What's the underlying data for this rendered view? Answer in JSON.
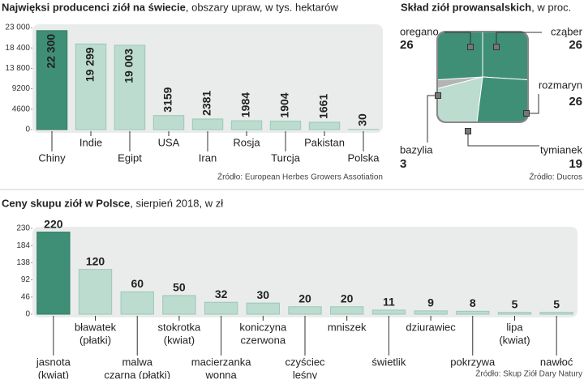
{
  "chart_data": [
    {
      "type": "bar",
      "title": "Najwięksi producenci ziół na świecie",
      "subtitle": ", obszary upraw, w tys. hektarów",
      "categories": [
        "Chiny",
        "Indie",
        "Egipt",
        "USA",
        "Iran",
        "Rosja",
        "Turcja",
        "Pakistan",
        "Polska"
      ],
      "values": [
        22300,
        19299,
        19003,
        3159,
        2381,
        1984,
        1904,
        1661,
        30
      ],
      "value_labels": [
        "22 300",
        "19 299",
        "19 003",
        "3159",
        "2381",
        "1984",
        "1904",
        "1661",
        "30"
      ],
      "colors": [
        "#3f8f76",
        "#bcdcd0",
        "#bcdcd0",
        "#bcdcd0",
        "#bcdcd0",
        "#bcdcd0",
        "#bcdcd0",
        "#bcdcd0",
        "#bcdcd0"
      ],
      "ylim": [
        0,
        23000
      ],
      "yticks": [
        0,
        4600,
        9200,
        {
          "value": 13800,
          "label": "13 800"
        },
        {
          "value": 18400,
          "label": "18 400"
        },
        {
          "value": 23000,
          "label": "23 000"
        }
      ],
      "source": "Źródło: European Herbes Growers Assotiation"
    },
    {
      "type": "pie",
      "title": "Skład ziół prowansalskich",
      "subtitle": ", w proc.",
      "categories": [
        "cząber",
        "rozmaryn",
        "tymianek",
        "bazylia",
        "oregano"
      ],
      "values": [
        26,
        26,
        19,
        3,
        26
      ],
      "colors": [
        "#3f8f76",
        "#3f8f76",
        "#bcdcd0",
        "#b4b4b4",
        "#3f8f76"
      ],
      "source": "Źródło: Ducros"
    },
    {
      "type": "bar",
      "title": "Ceny skupu ziół w Polsce",
      "subtitle": ", sierpień 2018,  w zł",
      "categories": [
        [
          "jasnota",
          "(kwiat)"
        ],
        [
          "bławatek",
          "(płatki)"
        ],
        [
          "malwa",
          "czarna (płatki)"
        ],
        [
          "stokrotka",
          "(kwiat)"
        ],
        [
          "macierzanka",
          "wonna"
        ],
        [
          "koniczyna",
          "czerwona"
        ],
        [
          "czyściec",
          "leśny"
        ],
        [
          "mniszek"
        ],
        [
          "świetlik"
        ],
        [
          "dziurawiec"
        ],
        [
          "pokrzywa"
        ],
        [
          "lipa",
          "(kwiat)"
        ],
        [
          "nawłoć"
        ]
      ],
      "values": [
        220,
        120,
        60,
        50,
        32,
        30,
        20,
        20,
        11,
        9,
        8,
        5,
        5
      ],
      "colors": [
        "#3f8f76",
        "#bcdcd0",
        "#bcdcd0",
        "#bcdcd0",
        "#bcdcd0",
        "#bcdcd0",
        "#bcdcd0",
        "#bcdcd0",
        "#bcdcd0",
        "#bcdcd0",
        "#bcdcd0",
        "#bcdcd0",
        "#bcdcd0"
      ],
      "ylim": [
        0,
        230
      ],
      "yticks": [
        0,
        46,
        92,
        138,
        184,
        230
      ],
      "source": "Źródło: Skup Ziół Dary Natury"
    }
  ]
}
